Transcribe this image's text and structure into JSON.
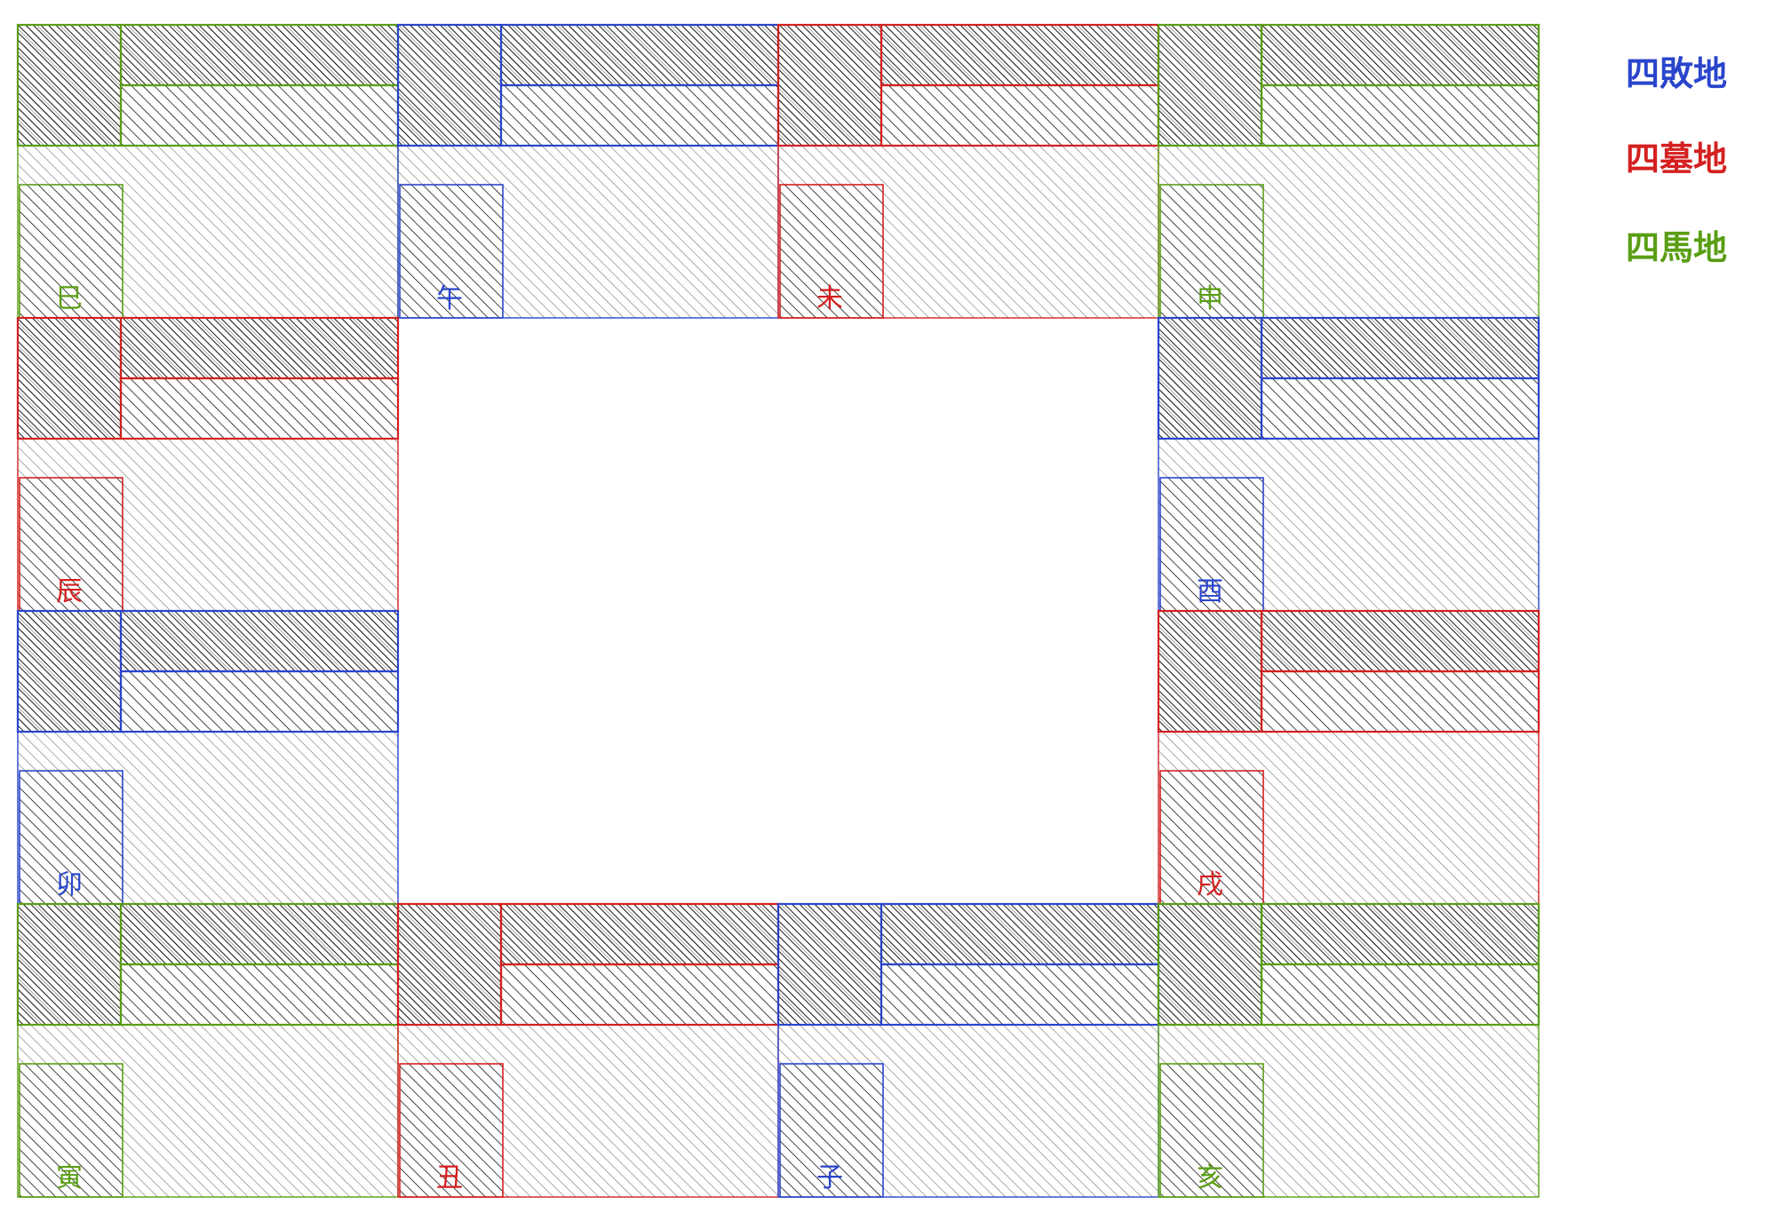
{
  "legend": {
    "bai": {
      "label": "四敗地",
      "color": "#2a45cc"
    },
    "mu": {
      "label": "四墓地",
      "color": "#d42020"
    },
    "ma": {
      "label": "四馬地",
      "color": "#5a9e14"
    }
  },
  "cells": [
    {
      "branch": "巳",
      "group": "ma"
    },
    {
      "branch": "午",
      "group": "bai"
    },
    {
      "branch": "未",
      "group": "mu"
    },
    {
      "branch": "申",
      "group": "ma"
    },
    {
      "branch": "辰",
      "group": "mu"
    },
    {
      "branch": "酉",
      "group": "bai"
    },
    {
      "branch": "卯",
      "group": "bai"
    },
    {
      "branch": "戌",
      "group": "mu"
    },
    {
      "branch": "寅",
      "group": "ma"
    },
    {
      "branch": "丑",
      "group": "mu"
    },
    {
      "branch": "子",
      "group": "bai"
    },
    {
      "branch": "亥",
      "group": "ma"
    }
  ]
}
